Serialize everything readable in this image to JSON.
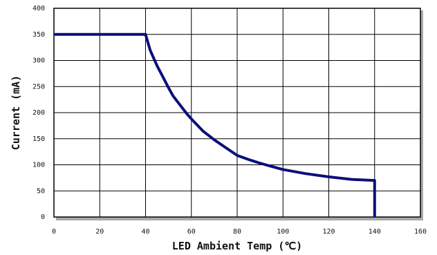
{
  "chart_data": {
    "type": "line",
    "title": "",
    "xlabel": "LED Ambient Temp (℃)",
    "ylabel": "Current (mA)",
    "xlim": [
      0,
      160
    ],
    "ylim": [
      0,
      400
    ],
    "xticks": [
      0,
      20,
      40,
      60,
      80,
      100,
      120,
      140,
      160
    ],
    "yticks": [
      0,
      50,
      100,
      150,
      200,
      250,
      300,
      350,
      400
    ],
    "x_tick_labels": [
      "0",
      "20",
      "40",
      "60",
      "80",
      "100",
      "120",
      "140",
      "160"
    ],
    "y_tick_labels": [
      "0",
      "50",
      "100",
      "150",
      "200",
      "250",
      "300",
      "350",
      "400"
    ],
    "grid": true,
    "legend": "none",
    "series": [
      {
        "color": "#0a0f7a",
        "x": [
          0,
          40,
          42,
          45,
          48,
          50,
          52,
          55,
          58,
          60,
          65,
          70,
          75,
          80,
          85,
          90,
          95,
          100,
          110,
          120,
          130,
          140,
          140
        ],
        "y": [
          350,
          350,
          320,
          290,
          265,
          248,
          232,
          215,
          198,
          188,
          165,
          148,
          133,
          118,
          110,
          103,
          97,
          91,
          83,
          77,
          72,
          70,
          0
        ]
      }
    ]
  }
}
